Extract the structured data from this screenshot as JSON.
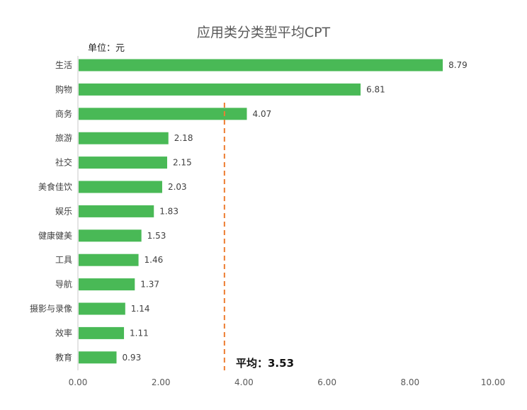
{
  "chart_data": {
    "type": "bar",
    "orientation": "horizontal",
    "title": "应用类分类型平均CPT",
    "unit_label": "单位：元",
    "categories": [
      "生活",
      "购物",
      "商务",
      "旅游",
      "社交",
      "美食佳饮",
      "娱乐",
      "健康健美",
      "工具",
      "导航",
      "摄影与录像",
      "效率",
      "教育"
    ],
    "values": [
      8.79,
      6.81,
      4.07,
      2.18,
      2.15,
      2.03,
      1.83,
      1.53,
      1.46,
      1.37,
      1.14,
      1.11,
      0.93
    ],
    "value_labels": [
      "8.79",
      "6.81",
      "4.07",
      "2.18",
      "2.15",
      "2.03",
      "1.83",
      "1.53",
      "1.46",
      "1.37",
      "1.14",
      "1.11",
      "0.93"
    ],
    "xlim": [
      0,
      10
    ],
    "x_ticks": [
      "0.00",
      "2.00",
      "4.00",
      "6.00",
      "8.00",
      "10.00"
    ],
    "grid": false,
    "bar_color": "#49B956",
    "reference_line": {
      "value": 3.53,
      "label": "平均：3.53",
      "color": "#ED7D31",
      "style": "dashed"
    }
  }
}
